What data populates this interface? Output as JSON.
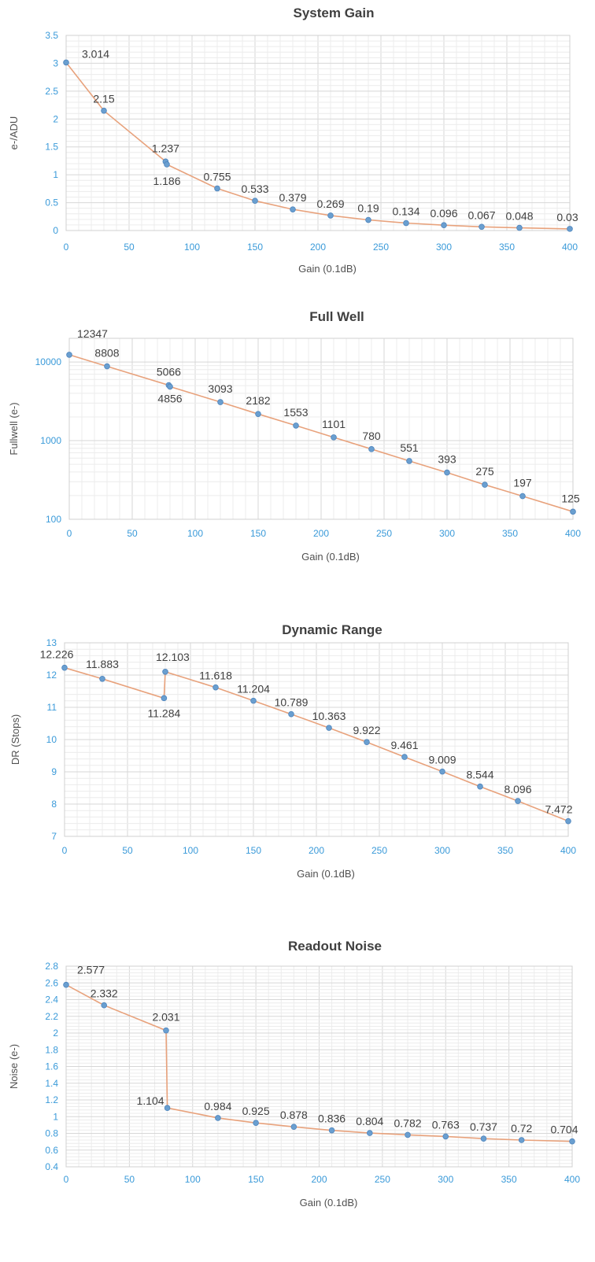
{
  "chart_data": [
    {
      "type": "line",
      "title": "System Gain",
      "xlabel": "Gain (0.1dB)",
      "ylabel": "e-/ADU",
      "xlim": [
        0,
        400
      ],
      "ylim": [
        0,
        3.5
      ],
      "yscale": "linear",
      "grid": true,
      "xticks": [
        "0",
        "50",
        "100",
        "150",
        "200",
        "250",
        "300",
        "350",
        "400"
      ],
      "yticks": [
        "0",
        "0.5",
        "1",
        "1.5",
        "2",
        "2.5",
        "3",
        "3.5"
      ],
      "x": [
        0,
        30,
        79,
        80,
        120,
        150,
        180,
        210,
        240,
        270,
        300,
        330,
        360,
        400
      ],
      "y": [
        3.014,
        2.15,
        1.237,
        1.186,
        0.755,
        0.533,
        0.379,
        0.269,
        0.19,
        0.134,
        0.096,
        0.067,
        0.048,
        0.03
      ],
      "labels": [
        "3.014",
        "2.15",
        "1.237",
        "1.186",
        "0.755",
        "0.533",
        "0.379",
        "0.269",
        "0.19",
        "0.134",
        "0.096",
        "0.067",
        "0.048",
        "0.03"
      ],
      "colors": {
        "line": "#e8a27c",
        "marker": "#6a9fd0",
        "ticks": "#3a9ad9"
      }
    },
    {
      "type": "line",
      "title": "Full Well",
      "xlabel": "Gain (0.1dB)",
      "ylabel": "Fullwell (e-)",
      "xlim": [
        0,
        400
      ],
      "ylim": [
        100,
        20000
      ],
      "yscale": "log",
      "grid": true,
      "xticks": [
        "0",
        "50",
        "100",
        "150",
        "200",
        "250",
        "300",
        "350",
        "400"
      ],
      "yticks": [
        "100",
        "1000",
        "10000"
      ],
      "x": [
        0,
        30,
        79,
        80,
        120,
        150,
        180,
        210,
        240,
        270,
        300,
        330,
        360,
        400
      ],
      "y": [
        12347,
        8808,
        5066,
        4856,
        3093,
        2182,
        1553,
        1101,
        780,
        551,
        393,
        275,
        197,
        125
      ],
      "labels": [
        "12347",
        "8808",
        "5066",
        "4856",
        "3093",
        "2182",
        "1553",
        "1101",
        "780",
        "551",
        "393",
        "275",
        "197",
        "125"
      ],
      "colors": {
        "line": "#e8a27c",
        "marker": "#6a9fd0",
        "ticks": "#3a9ad9"
      }
    },
    {
      "type": "line",
      "title": "Dynamic Range",
      "xlabel": "Gain (0.1dB)",
      "ylabel": "DR (Stops)",
      "xlim": [
        0,
        400
      ],
      "ylim": [
        7,
        13
      ],
      "yscale": "linear",
      "grid": true,
      "xticks": [
        "0",
        "50",
        "100",
        "150",
        "200",
        "250",
        "300",
        "350",
        "400"
      ],
      "yticks": [
        "7",
        "8",
        "9",
        "10",
        "11",
        "12",
        "13"
      ],
      "x": [
        0,
        30,
        79,
        80,
        120,
        150,
        180,
        210,
        240,
        270,
        300,
        330,
        360,
        400
      ],
      "y": [
        12.226,
        11.883,
        11.284,
        12.103,
        11.618,
        11.204,
        10.789,
        10.363,
        9.922,
        9.461,
        9.009,
        8.544,
        8.096,
        7.472
      ],
      "labels": [
        "12.226",
        "11.883",
        "11.284",
        "12.103",
        "11.618",
        "11.204",
        "10.789",
        "10.363",
        "9.922",
        "9.461",
        "9.009",
        "8.544",
        "8.096",
        "7.472"
      ],
      "colors": {
        "line": "#e8a27c",
        "marker": "#6a9fd0",
        "ticks": "#3a9ad9"
      }
    },
    {
      "type": "line",
      "title": "Readout Noise",
      "xlabel": "Gain (0.1dB)",
      "ylabel": "Noise (e-)",
      "xlim": [
        0,
        400
      ],
      "ylim": [
        0.4,
        2.8
      ],
      "yscale": "linear",
      "grid": true,
      "xticks": [
        "0",
        "50",
        "100",
        "150",
        "200",
        "250",
        "300",
        "350",
        "400"
      ],
      "yticks": [
        "0.4",
        "0.6",
        "0.8",
        "1",
        "1.2",
        "1.4",
        "1.6",
        "1.8",
        "2",
        "2.2",
        "2.4",
        "2.6",
        "2.8"
      ],
      "x": [
        0,
        30,
        79,
        80,
        120,
        150,
        180,
        210,
        240,
        270,
        300,
        330,
        360,
        400
      ],
      "y": [
        2.577,
        2.332,
        2.031,
        1.104,
        0.984,
        0.925,
        0.878,
        0.836,
        0.804,
        0.782,
        0.763,
        0.737,
        0.72,
        0.704
      ],
      "labels": [
        "2.577",
        "2.332",
        "2.031",
        "1.104",
        "0.984",
        "0.925",
        "0.878",
        "0.836",
        "0.804",
        "0.782",
        "0.763",
        "0.737",
        "0.72",
        "0.704"
      ],
      "colors": {
        "line": "#e8a27c",
        "marker": "#6a9fd0",
        "ticks": "#3a9ad9"
      }
    }
  ]
}
